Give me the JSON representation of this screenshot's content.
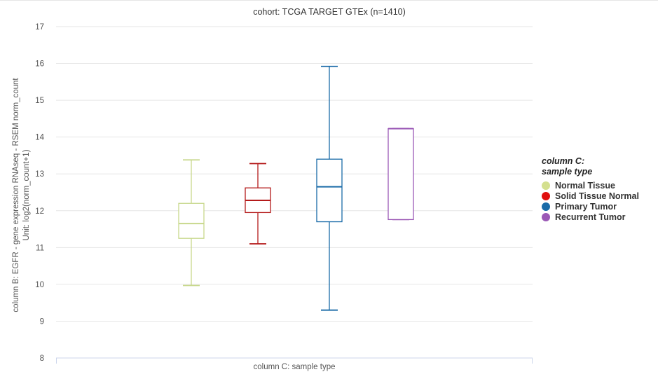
{
  "chart_data": {
    "type": "boxplot",
    "title": "cohort: TCGA TARGET GTEx (n=1410)",
    "xlabel": "column C: sample type",
    "ylabel_lines": [
      "column B: EGFR - gene expression RNAseq - RSEM norm_count",
      "Unit: log2(norm_count+1)"
    ],
    "ylim": [
      8,
      17
    ],
    "yticks": [
      8,
      9,
      10,
      11,
      12,
      13,
      14,
      15,
      16,
      17
    ],
    "grid": true,
    "legend_position": "right",
    "legend_title_lines": [
      "column C:",
      "sample type"
    ],
    "series": [
      {
        "name": "Normal Tissue",
        "color": "#c8d88c",
        "min": 9.97,
        "q1": 11.25,
        "median": 11.65,
        "q3": 12.2,
        "max": 13.38
      },
      {
        "name": "Solid Tissue Normal",
        "color": "#b41a1a",
        "min": 11.1,
        "q1": 11.95,
        "median": 12.28,
        "q3": 12.62,
        "max": 13.28
      },
      {
        "name": "Primary Tumor",
        "color": "#1a6ba8",
        "min": 9.3,
        "q1": 11.7,
        "median": 12.65,
        "q3": 13.4,
        "max": 15.92
      },
      {
        "name": "Recurrent Tumor",
        "color": "#9b59b6",
        "min": 11.76,
        "q1": 11.76,
        "median": 14.23,
        "q3": 14.23,
        "max": 14.23
      }
    ]
  },
  "legend_dot_colors": [
    "#d4e08f",
    "#e01010",
    "#1a6ba8",
    "#9b59b6"
  ]
}
